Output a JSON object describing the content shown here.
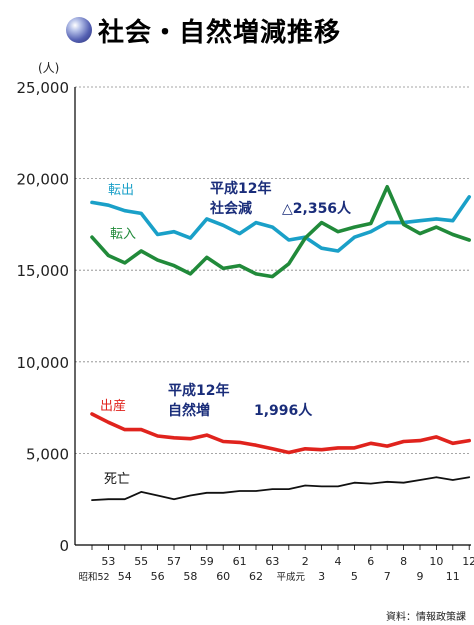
{
  "title": "社会・自然増減推移",
  "source": "資料：情報政策課",
  "chart_data": {
    "type": "line",
    "unit": "(人)",
    "ylim": [
      0,
      25000
    ],
    "yticks": [
      "0",
      "5,000",
      "10,000",
      "15,000",
      "20,000",
      "25,000"
    ],
    "x_odd_labels": [
      "53",
      "55",
      "57",
      "59",
      "61",
      "63",
      "2",
      "4",
      "6",
      "8",
      "10",
      "12"
    ],
    "x_even_labels": [
      "昭和52",
      "54",
      "56",
      "58",
      "60",
      "62",
      "平成元",
      "3",
      "5",
      "7",
      "9",
      "11"
    ],
    "series": [
      {
        "name": "転出",
        "color": "#1aa0c8",
        "values": [
          18700,
          18550,
          18250,
          18100,
          16950,
          17100,
          16750,
          17800,
          17450,
          17000,
          17600,
          17350,
          16650,
          16800,
          16200,
          16050,
          16800,
          17100,
          17600,
          17600,
          17700,
          17800,
          17700,
          19000
        ]
      },
      {
        "name": "転入",
        "color": "#218a3a",
        "values": [
          16800,
          15800,
          15400,
          16050,
          15550,
          15250,
          14800,
          15700,
          15100,
          15250,
          14800,
          14650,
          15350,
          16750,
          17600,
          17100,
          17350,
          17550,
          19550,
          17500,
          17000,
          17350,
          16950,
          16650
        ]
      },
      {
        "name": "出産",
        "color": "#e0231d",
        "values": [
          7150,
          6700,
          6300,
          6300,
          5950,
          5850,
          5800,
          6000,
          5650,
          5600,
          5450,
          5250,
          5050,
          5250,
          5200,
          5300,
          5300,
          5550,
          5400,
          5650,
          5700,
          5900,
          5550,
          5700
        ]
      },
      {
        "name": "死亡",
        "color": "#111111",
        "values": [
          2450,
          2500,
          2500,
          2900,
          2700,
          2500,
          2700,
          2850,
          2850,
          2950,
          2950,
          3050,
          3050,
          3250,
          3200,
          3200,
          3400,
          3350,
          3450,
          3400,
          3550,
          3700,
          3550,
          3700
        ]
      }
    ],
    "annotations": [
      {
        "line1": "平成12年",
        "line2": "社会減",
        "value": "△2,356人"
      },
      {
        "line1": "平成12年",
        "line2": "自然増",
        "value": "1,996人"
      }
    ],
    "grid": "dashed-horizontal"
  }
}
